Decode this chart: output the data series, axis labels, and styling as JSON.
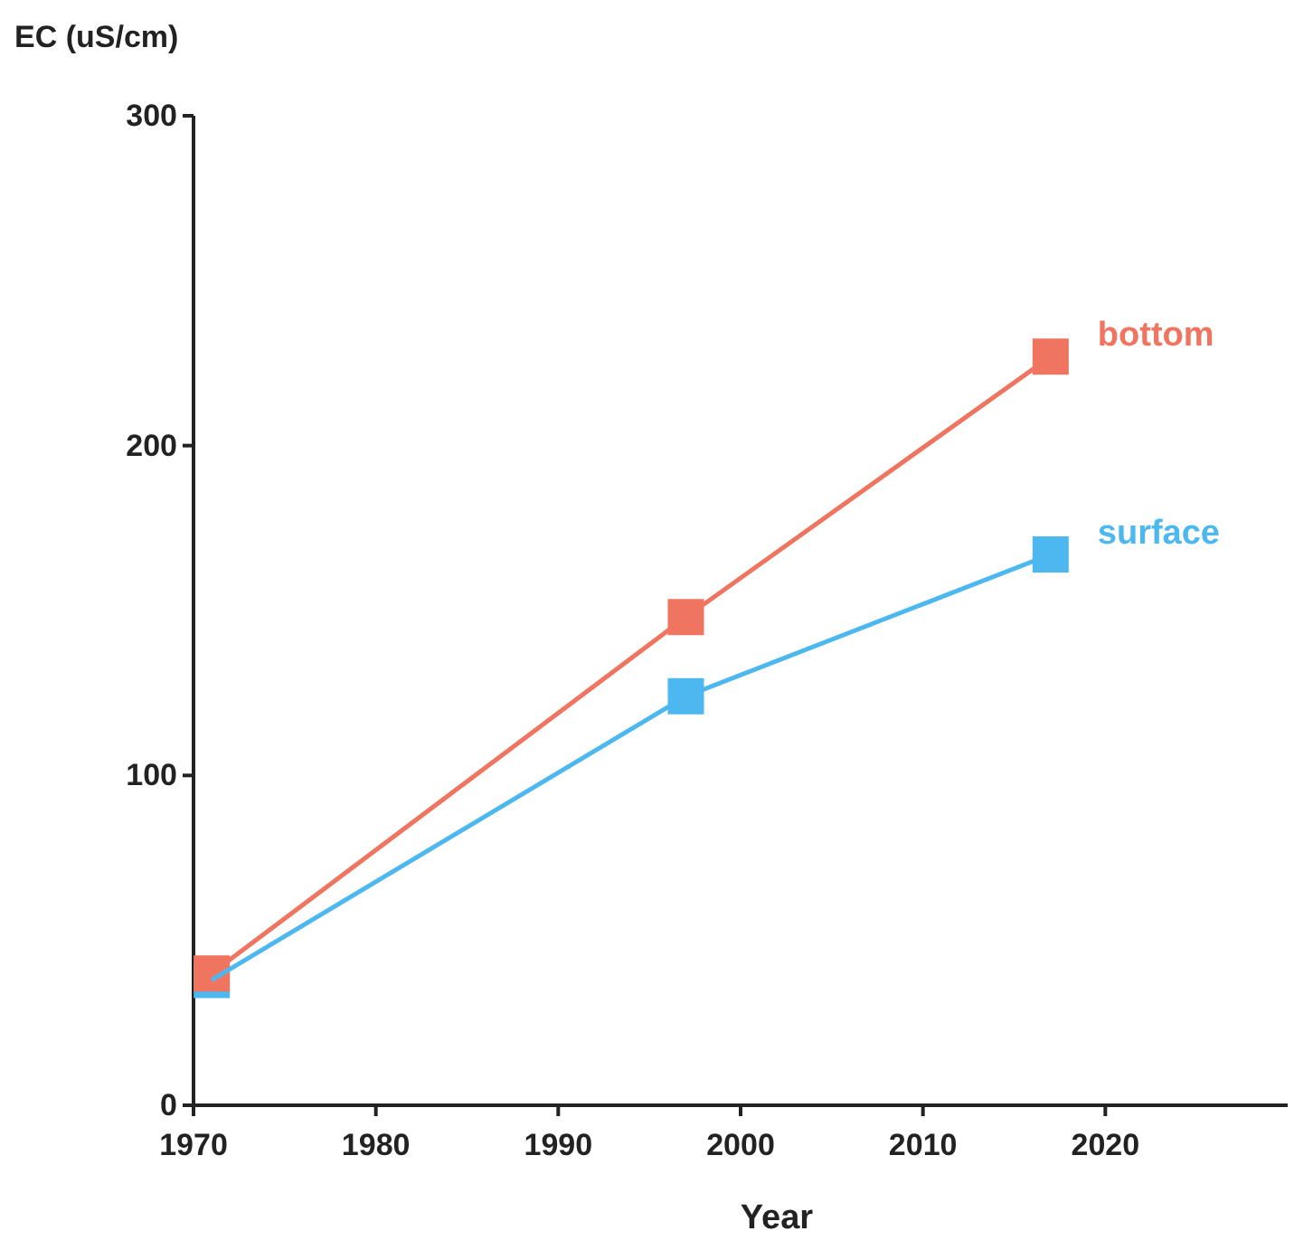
{
  "chart_data": {
    "type": "line",
    "xlabel": "Year",
    "ylabel": "EC (uS/cm)",
    "x": [
      1971,
      1997,
      2017
    ],
    "series": [
      {
        "name": "bottom",
        "color": "#f07560",
        "values": [
          40,
          148,
          227
        ]
      },
      {
        "name": "surface",
        "color": "#4db8ef",
        "values": [
          38,
          124,
          167
        ]
      }
    ],
    "xlim": [
      1970,
      2030
    ],
    "xticks": [
      1970,
      1980,
      1990,
      2000,
      2010,
      2020
    ],
    "ylim": [
      0,
      300
    ],
    "yticks": [
      0,
      100,
      200,
      300
    ],
    "grid": false,
    "legend": false,
    "marker": "square",
    "line_style": "solid"
  }
}
